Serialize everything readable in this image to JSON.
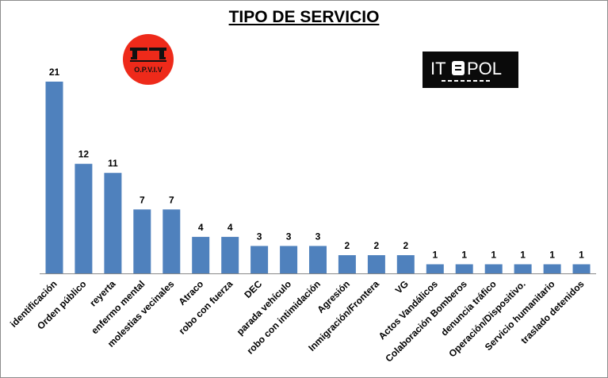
{
  "chart_data": {
    "type": "bar",
    "title": "TIPO DE SERVICIO",
    "categories": [
      "identificación",
      "Orden público",
      "reyerta",
      "enfermo mental",
      "molestias vecinales",
      "Atraco",
      "robo con fuerza",
      "DEC",
      "parada vehículo",
      "robo con intimidación",
      "Agresión",
      "Inmigración/Frontera",
      "VG",
      "Actos Vandálicos",
      "Colaboración Bomberos",
      "denuncia tráfico",
      "Operación/Dispositivo.",
      "Servicio humanitario",
      "traslado detenidos"
    ],
    "values": [
      21,
      12,
      11,
      7,
      7,
      4,
      4,
      3,
      3,
      3,
      2,
      2,
      2,
      1,
      1,
      1,
      1,
      1,
      1
    ],
    "bar_color": "#4f81bd",
    "data_labels": true,
    "grid": false,
    "legend": "none"
  },
  "logos": {
    "opviv_text": "O.P.V.I.V",
    "itepol_text": "ITEPOL",
    "opviv_color": "#ee2a1a",
    "itepol_color": "#0a0a0a"
  }
}
